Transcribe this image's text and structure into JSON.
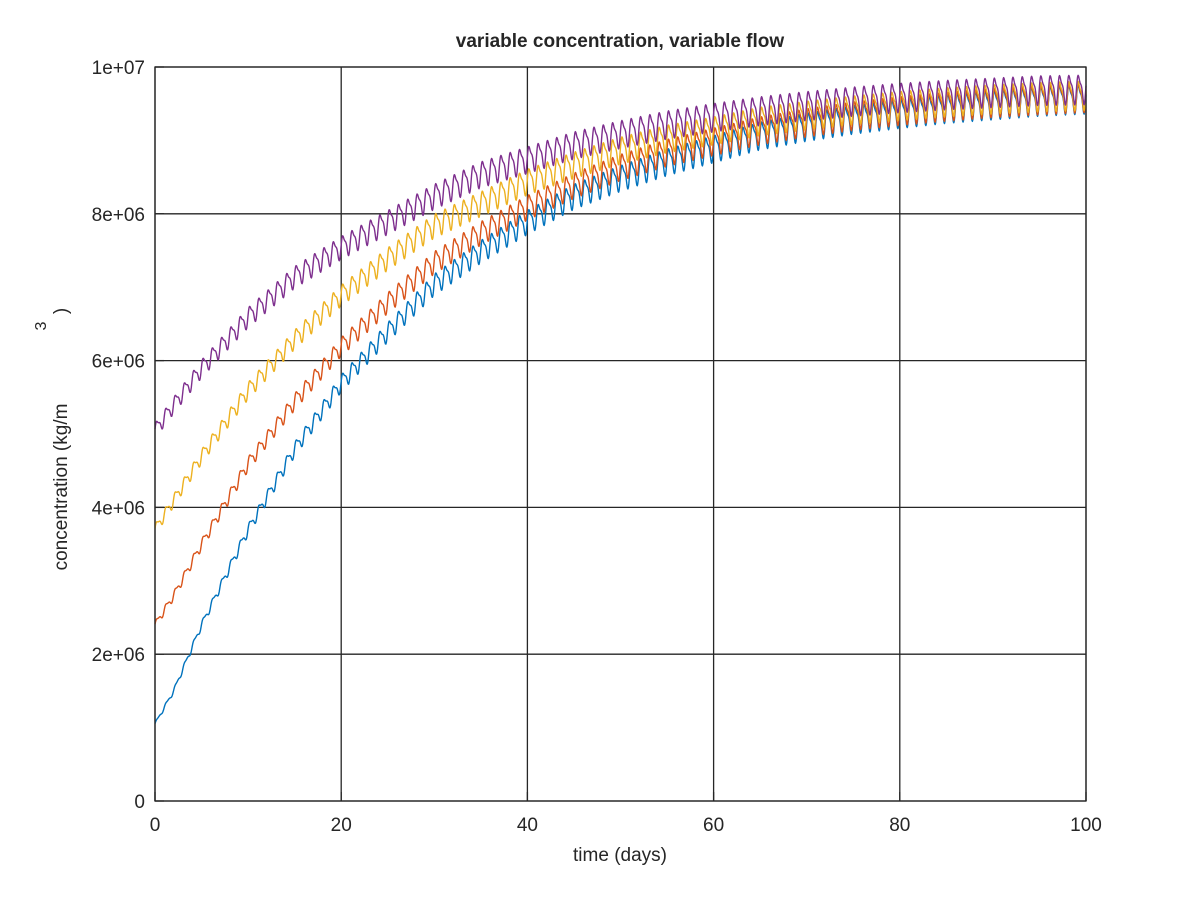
{
  "chart_data": {
    "type": "line",
    "title": "variable concentration, variable flow",
    "xlabel": "time (days)",
    "ylabel": "concentration (kg/m",
    "ylabel_superscript": "3",
    "ylabel_suffix": ")",
    "xlim": [
      0,
      100
    ],
    "ylim": [
      0,
      10000000
    ],
    "grid": true,
    "legend": "none",
    "x_ticks": [
      0,
      20,
      40,
      60,
      80,
      100
    ],
    "x_tick_labels": [
      "0",
      "20",
      "40",
      "60",
      "80",
      "100"
    ],
    "y_ticks": [
      0,
      2000000,
      4000000,
      6000000,
      8000000,
      10000000
    ],
    "y_tick_labels": [
      "0",
      "2e+06",
      "4e+06",
      "6e+06",
      "8e+06",
      "1e+07"
    ],
    "oscillation": {
      "period_days": 1,
      "relative_amplitude": 0.018
    },
    "series": [
      {
        "color": "#0072BD",
        "x": [
          0,
          2,
          5,
          10,
          15,
          20,
          25,
          30,
          35,
          40,
          45,
          50,
          55,
          60,
          65,
          70,
          75,
          80,
          85,
          90,
          95,
          100
        ],
        "values": [
          1050000,
          1500000,
          2400000,
          3700000,
          4800000,
          5700000,
          6400000,
          7050000,
          7500000,
          7900000,
          8250000,
          8500000,
          8720000,
          8900000,
          9080000,
          9200000,
          9300000,
          9380000,
          9450000,
          9500000,
          9550000,
          9580000
        ]
      },
      {
        "color": "#D95319",
        "x": [
          0,
          2,
          5,
          10,
          15,
          20,
          25,
          30,
          35,
          40,
          45,
          50,
          55,
          60,
          65,
          70,
          75,
          80,
          85,
          90,
          95,
          100
        ],
        "values": [
          2400000,
          2800000,
          3500000,
          4600000,
          5450000,
          6200000,
          6800000,
          7350000,
          7750000,
          8100000,
          8400000,
          8650000,
          8850000,
          9000000,
          9150000,
          9260000,
          9350000,
          9420000,
          9480000,
          9530000,
          9570000,
          9600000
        ]
      },
      {
        "color": "#EDB120",
        "x": [
          0,
          2,
          5,
          10,
          15,
          20,
          25,
          30,
          35,
          40,
          45,
          50,
          55,
          60,
          65,
          70,
          75,
          80,
          85,
          90,
          95,
          100
        ],
        "values": [
          3700000,
          4100000,
          4700000,
          5600000,
          6300000,
          6900000,
          7400000,
          7850000,
          8150000,
          8450000,
          8680000,
          8880000,
          9040000,
          9150000,
          9280000,
          9360000,
          9430000,
          9490000,
          9540000,
          9580000,
          9610000,
          9630000
        ]
      },
      {
        "color": "#7E2F8E",
        "x": [
          0,
          2,
          5,
          10,
          15,
          20,
          25,
          30,
          35,
          40,
          45,
          50,
          55,
          60,
          65,
          70,
          75,
          80,
          85,
          90,
          95,
          100
        ],
        "values": [
          5050000,
          5400000,
          5900000,
          6600000,
          7150000,
          7550000,
          7900000,
          8250000,
          8550000,
          8750000,
          8950000,
          9100000,
          9230000,
          9330000,
          9420000,
          9490000,
          9550000,
          9600000,
          9640000,
          9670000,
          9700000,
          9710000
        ]
      }
    ]
  }
}
